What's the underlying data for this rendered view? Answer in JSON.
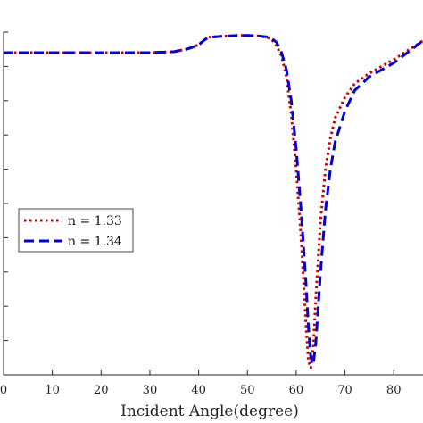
{
  "chart_data": {
    "type": "line",
    "title": "",
    "xlabel": "Incident Angle(degree)",
    "ylabel": "",
    "xlim": [
      0,
      86
    ],
    "ylim": [
      0,
      1
    ],
    "xticks": [
      0,
      10,
      20,
      30,
      40,
      50,
      60,
      70,
      80
    ],
    "xtick_labels": [
      "0",
      "10",
      "20",
      "30",
      "40",
      "50",
      "60",
      "70",
      "80"
    ],
    "yticks": [
      0,
      0.1,
      0.2,
      0.3,
      0.4,
      0.5,
      0.6,
      0.7,
      0.8,
      0.9,
      1.0
    ],
    "grid": false,
    "legend_position": "middle-left",
    "series": [
      {
        "name": "n = 1.33",
        "color": "#cc0000",
        "dash": "dotted",
        "points": [
          [
            0,
            0.94
          ],
          [
            10,
            0.94
          ],
          [
            20,
            0.94
          ],
          [
            30,
            0.94
          ],
          [
            35,
            0.943
          ],
          [
            38,
            0.952
          ],
          [
            40,
            0.963
          ],
          [
            41,
            0.975
          ],
          [
            42,
            0.985
          ],
          [
            45,
            0.988
          ],
          [
            48,
            0.99
          ],
          [
            50,
            0.99
          ],
          [
            52,
            0.989
          ],
          [
            54,
            0.985
          ],
          [
            55,
            0.978
          ],
          [
            56,
            0.96
          ],
          [
            57,
            0.93
          ],
          [
            58,
            0.87
          ],
          [
            59,
            0.76
          ],
          [
            60,
            0.6
          ],
          [
            61,
            0.4
          ],
          [
            62,
            0.15
          ],
          [
            62.5,
            0.04
          ],
          [
            63,
            0.02
          ],
          [
            63.5,
            0.08
          ],
          [
            64,
            0.22
          ],
          [
            65,
            0.45
          ],
          [
            66,
            0.6
          ],
          [
            67,
            0.69
          ],
          [
            68,
            0.75
          ],
          [
            70,
            0.81
          ],
          [
            72,
            0.85
          ],
          [
            75,
            0.88
          ],
          [
            80,
            0.92
          ],
          [
            86,
            0.975
          ]
        ]
      },
      {
        "name": "n = 1.34",
        "color": "#0000cc",
        "dash": "dashed",
        "points": [
          [
            0,
            0.94
          ],
          [
            10,
            0.94
          ],
          [
            20,
            0.94
          ],
          [
            30,
            0.94
          ],
          [
            35,
            0.943
          ],
          [
            38,
            0.952
          ],
          [
            40,
            0.963
          ],
          [
            41,
            0.975
          ],
          [
            42,
            0.985
          ],
          [
            45,
            0.988
          ],
          [
            48,
            0.99
          ],
          [
            50,
            0.99
          ],
          [
            52,
            0.989
          ],
          [
            54,
            0.986
          ],
          [
            55,
            0.981
          ],
          [
            56,
            0.97
          ],
          [
            57,
            0.94
          ],
          [
            58,
            0.89
          ],
          [
            59,
            0.8
          ],
          [
            60,
            0.66
          ],
          [
            61,
            0.48
          ],
          [
            62,
            0.27
          ],
          [
            62.5,
            0.14
          ],
          [
            63,
            0.05
          ],
          [
            63.5,
            0.03
          ],
          [
            64,
            0.09
          ],
          [
            65,
            0.3
          ],
          [
            66,
            0.48
          ],
          [
            67,
            0.6
          ],
          [
            68,
            0.68
          ],
          [
            70,
            0.77
          ],
          [
            72,
            0.83
          ],
          [
            75,
            0.87
          ],
          [
            80,
            0.91
          ],
          [
            86,
            0.975
          ]
        ]
      }
    ]
  }
}
